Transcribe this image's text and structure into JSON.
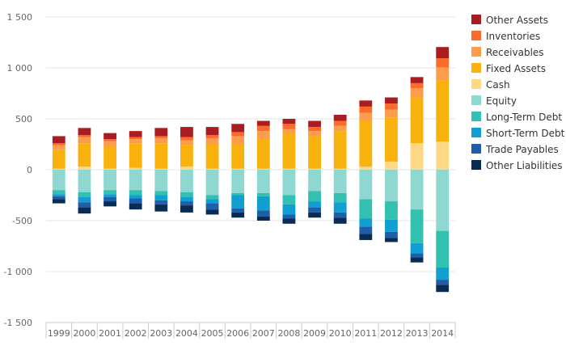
{
  "chart_data": {
    "type": "bar",
    "stacked": true,
    "title": "",
    "xlabel": "",
    "ylabel": "",
    "ylim": [
      -1500,
      1500
    ],
    "yticks": [
      1500,
      1000,
      500,
      0,
      -500,
      -1000,
      -1500
    ],
    "ytick_labels": [
      "1 500",
      "1 000",
      "500",
      "0",
      "-500",
      "-1 000",
      "-1 500"
    ],
    "grid": true,
    "legend_position": "right",
    "categories": [
      "1999",
      "2000",
      "2001",
      "2002",
      "2003",
      "2004",
      "2005",
      "2006",
      "2007",
      "2008",
      "2009",
      "2010",
      "2011",
      "2012",
      "2013",
      "2014"
    ],
    "positive_series": [
      {
        "name": "Cash",
        "color": "#fdd985",
        "values": [
          10,
          30,
          10,
          20,
          10,
          30,
          10,
          10,
          10,
          10,
          10,
          10,
          30,
          80,
          260,
          275
        ]
      },
      {
        "name": "Fixed Assets",
        "color": "#f9b20d",
        "values": [
          190,
          230,
          220,
          240,
          250,
          210,
          240,
          240,
          300,
          340,
          320,
          370,
          450,
          430,
          450,
          600
        ]
      },
      {
        "name": "Receivables",
        "color": "#fb9d4b",
        "values": [
          40,
          60,
          50,
          40,
          50,
          50,
          60,
          80,
          70,
          50,
          50,
          50,
          80,
          80,
          90,
          130
        ]
      },
      {
        "name": "Inventories",
        "color": "#fd6b2c",
        "values": [
          20,
          20,
          20,
          20,
          20,
          30,
          30,
          40,
          50,
          50,
          40,
          50,
          60,
          60,
          50,
          90
        ]
      },
      {
        "name": "Other Assets",
        "color": "#a91d20",
        "values": [
          70,
          70,
          60,
          60,
          80,
          100,
          80,
          80,
          50,
          50,
          60,
          60,
          60,
          60,
          60,
          110
        ]
      }
    ],
    "negative_series": [
      {
        "name": "Equity",
        "color": "#8ed8d1",
        "values": [
          -200,
          -220,
          -200,
          -200,
          -210,
          -220,
          -250,
          -230,
          -230,
          -250,
          -210,
          -230,
          -290,
          -310,
          -390,
          -600
        ]
      },
      {
        "name": "Long-Term Debt",
        "color": "#32c1b0",
        "values": [
          -40,
          -50,
          -40,
          -50,
          -40,
          -50,
          -40,
          -20,
          -30,
          -90,
          -100,
          -90,
          -190,
          -180,
          -330,
          -360
        ]
      },
      {
        "name": "Short-Term Debt",
        "color": "#0f9fd3",
        "values": [
          -20,
          -50,
          -30,
          -30,
          -50,
          -40,
          -40,
          -130,
          -140,
          -100,
          -60,
          -100,
          -80,
          -120,
          -100,
          -120
        ]
      },
      {
        "name": "Trade Payables",
        "color": "#1d5fa8",
        "values": [
          -30,
          -50,
          -40,
          -50,
          -40,
          -40,
          -60,
          -40,
          -60,
          -40,
          -50,
          -50,
          -70,
          -60,
          -40,
          -50
        ]
      },
      {
        "name": "Other Liabilities",
        "color": "#0a2b53",
        "values": [
          -40,
          -60,
          -50,
          -60,
          -70,
          -70,
          -50,
          -50,
          -40,
          -50,
          -50,
          -60,
          -60,
          -40,
          -50,
          -70
        ]
      }
    ],
    "legend": [
      {
        "name": "Other Assets",
        "color": "#a91d20"
      },
      {
        "name": "Inventories",
        "color": "#fd6b2c"
      },
      {
        "name": "Receivables",
        "color": "#fb9d4b"
      },
      {
        "name": "Fixed Assets",
        "color": "#f9b20d"
      },
      {
        "name": "Cash",
        "color": "#fdd985"
      },
      {
        "name": "Equity",
        "color": "#8ed8d1"
      },
      {
        "name": "Long-Term Debt",
        "color": "#32c1b0"
      },
      {
        "name": "Short-Term Debt",
        "color": "#0f9fd3"
      },
      {
        "name": "Trade Payables",
        "color": "#1d5fa8"
      },
      {
        "name": "Other Liabilities",
        "color": "#0a2b53"
      }
    ]
  }
}
